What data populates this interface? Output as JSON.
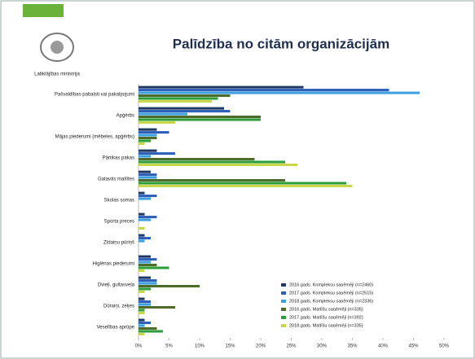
{
  "header": {
    "title": "Palīdzība no citām organizācijām",
    "logo_text": "Labklājības ministrija"
  },
  "chart_data": {
    "type": "barh",
    "categories": [
      "Pašvaldības pabalsti vai pakalpojumi",
      "Apģērbs",
      "Mājas piederumi (mēbeles, apģērbs)",
      "Pārtikas pakas",
      "Gatavās maltītes",
      "Skolas somas",
      "Sporta preces",
      "Zīdaiņu pūriņš",
      "Higiēnas piederumi",
      "Dvieļi, gultasveļa",
      "Dūraiņi, zeķes",
      "Veselības aprūpe"
    ],
    "series": [
      {
        "name": "2016.gads. Kompleksu saņēmēji (n=2460)",
        "color": "#1f3864",
        "values": [
          27,
          14,
          3,
          3,
          2,
          1,
          1,
          1,
          2,
          2,
          1,
          1
        ]
      },
      {
        "name": "2017.gads. Kompleksu saņēmēji (n=2515)",
        "color": "#2e5fb8",
        "values": [
          41,
          15,
          5,
          6,
          3,
          3,
          3,
          2,
          3,
          3,
          2,
          2
        ]
      },
      {
        "name": "2018.gads. Kompleksu saņēmēji (n=2336)",
        "color": "#3fa0e0",
        "values": [
          46,
          8,
          3,
          2,
          3,
          2,
          2,
          1,
          2,
          3,
          2,
          1
        ]
      },
      {
        "name": "2016.gads. Maltīšu saņēmēji (n=335)",
        "color": "#4e6b2a",
        "values": [
          15,
          20,
          3,
          19,
          24,
          0,
          0,
          0,
          3,
          10,
          6,
          3
        ]
      },
      {
        "name": "2017.gads. Maltīšu saņēmēji (n=392)",
        "color": "#2f9e3a",
        "values": [
          13,
          20,
          2,
          24,
          34,
          0,
          0,
          0,
          5,
          2,
          1,
          4
        ]
      },
      {
        "name": "2018.gads. Maltīšu saņēmēji (n=335)",
        "color": "#c8d84a",
        "values": [
          12,
          6,
          1,
          26,
          35,
          0,
          1,
          0,
          1,
          1,
          1,
          1
        ]
      }
    ],
    "xlim": [
      0,
      50
    ],
    "xticks": [
      {
        "value": 0,
        "label": "0%"
      },
      {
        "value": 5,
        "label": "5%"
      },
      {
        "value": 10,
        "label": "10%"
      },
      {
        "value": 15,
        "label": "15%"
      },
      {
        "value": 20,
        "label": "20%"
      },
      {
        "value": 25,
        "label": "25%"
      },
      {
        "value": 30,
        "label": "30%"
      },
      {
        "value": 35,
        "label": "35%"
      },
      {
        "value": 40,
        "label": "40%"
      },
      {
        "value": 45,
        "label": "45%"
      },
      {
        "value": 50,
        "label": "50%"
      }
    ]
  }
}
